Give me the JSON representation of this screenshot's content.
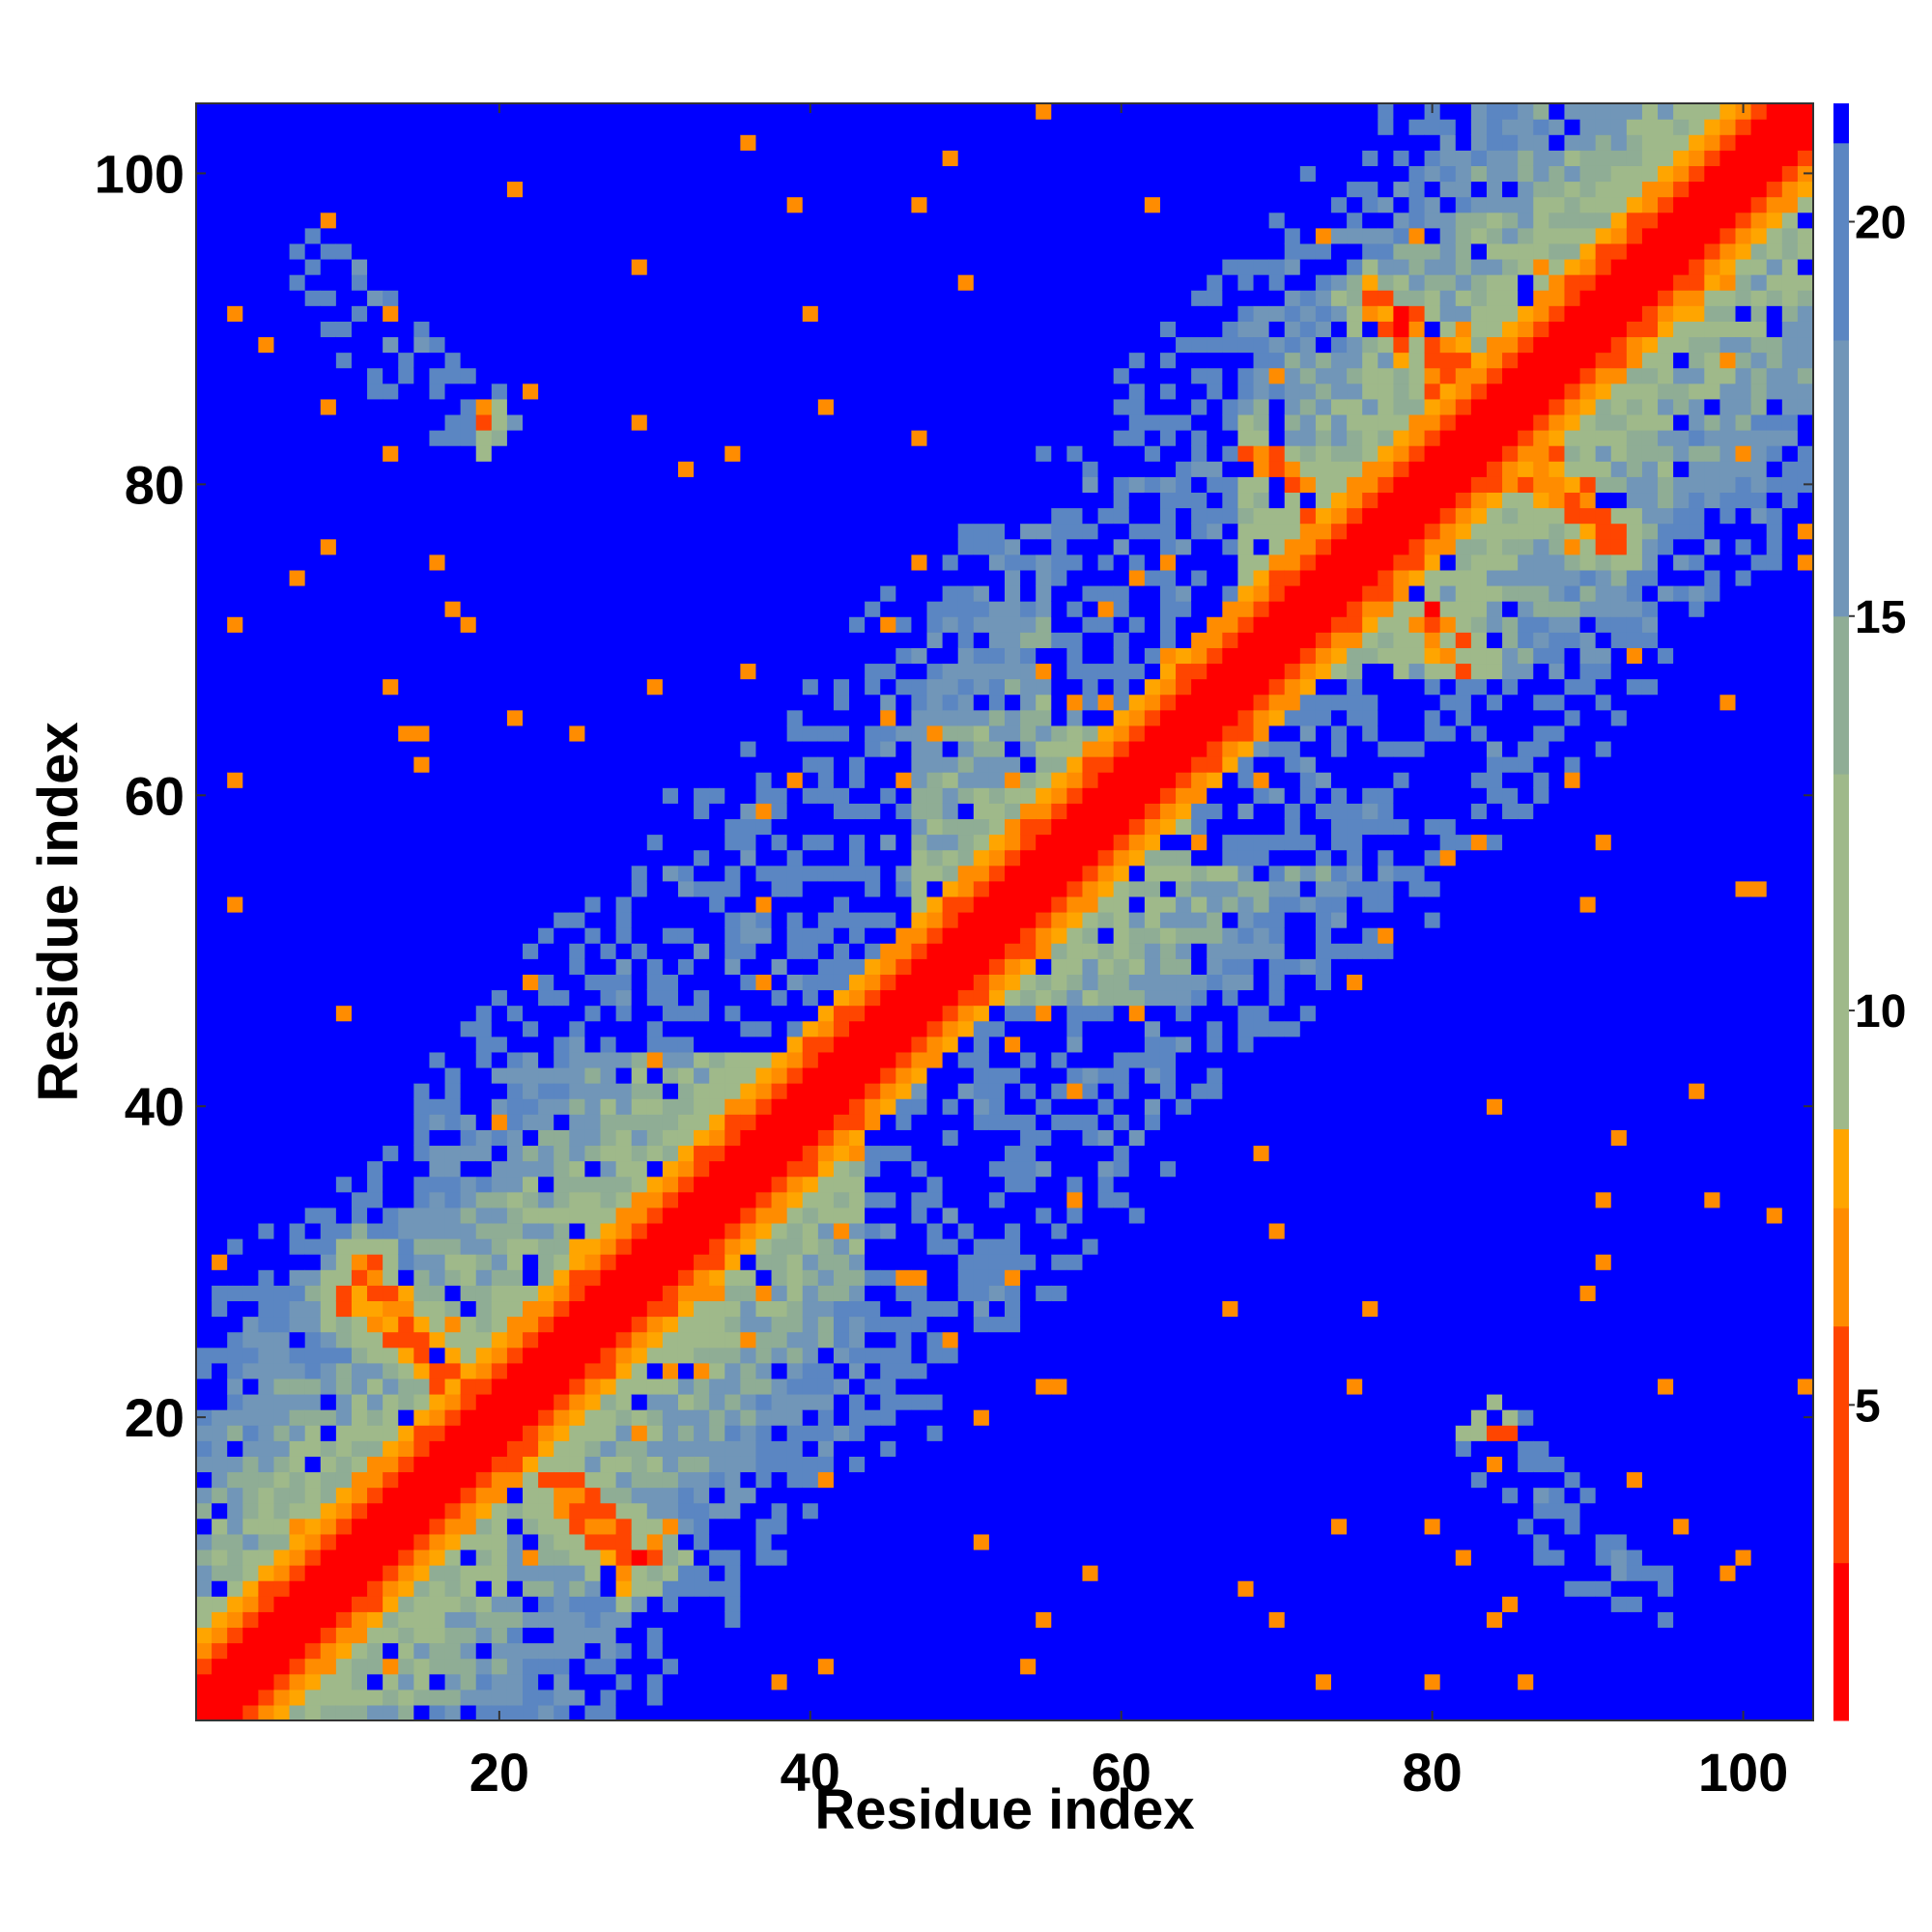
{
  "chart_data": {
    "type": "heatmap",
    "title": "",
    "xlabel": "Residue index",
    "ylabel": "Residue index",
    "n_residues": 104,
    "xlim": [
      1,
      104
    ],
    "ylim": [
      1,
      104
    ],
    "x_ticks": [
      20,
      40,
      60,
      80,
      100
    ],
    "y_ticks": [
      20,
      40,
      60,
      80,
      100
    ],
    "colorbar": {
      "range": [
        1,
        21.5
      ],
      "ticks": [
        5,
        10,
        15,
        20
      ],
      "placement": "right",
      "colors": [
        "#ff0000",
        "#ff4500",
        "#ff8c00",
        "#ffa500",
        "#9fb98a",
        "#8fad95",
        "#7196b8",
        "#5b86c2",
        "#0000ff"
      ],
      "bounds": [
        1,
        3,
        6,
        7.5,
        8.5,
        13,
        15,
        18.5,
        21,
        21.5
      ]
    },
    "structure": {
      "diagonal_band": {
        "from": 1,
        "to": 104
      },
      "diagonal_width": 2,
      "near_diagonal_width": 5,
      "domains": [
        {
          "from": 1,
          "to": 33
        },
        {
          "from": 1,
          "to": 104
        }
      ],
      "contact_lines": [
        {
          "from": [
            18,
            22
          ],
          "to": [
            28,
            10
          ]
        },
        {
          "from": [
            11,
            30
          ],
          "to": [
            19,
            20
          ]
        },
        {
          "from": [
            10,
            90
          ],
          "to": [
            18,
            84
          ]
        },
        {
          "from": [
            69,
            82
          ],
          "to": [
            76,
            75
          ]
        },
        {
          "from": [
            77,
            75
          ],
          "to": [
            82,
            68
          ]
        },
        {
          "from": [
            78,
            91
          ],
          "to": [
            86,
            84
          ]
        },
        {
          "from": [
            86,
            81
          ],
          "to": [
            92,
            76
          ]
        },
        {
          "from": [
            84,
            19
          ],
          "to": [
            94,
            8
          ]
        }
      ],
      "distant_regions": [
        {
          "x": [
            1,
            44
          ],
          "y": [
            53,
            67
          ]
        },
        {
          "x": [
            44,
            68
          ],
          "y": [
            1,
            46
          ]
        },
        {
          "x": [
            17,
            67
          ],
          "y": [
            86,
            104
          ]
        },
        {
          "x": [
            67,
            104
          ],
          "y": [
            1,
            18
          ]
        },
        {
          "x": [
            65,
            104
          ],
          "y": [
            56,
            67
          ]
        }
      ]
    }
  }
}
